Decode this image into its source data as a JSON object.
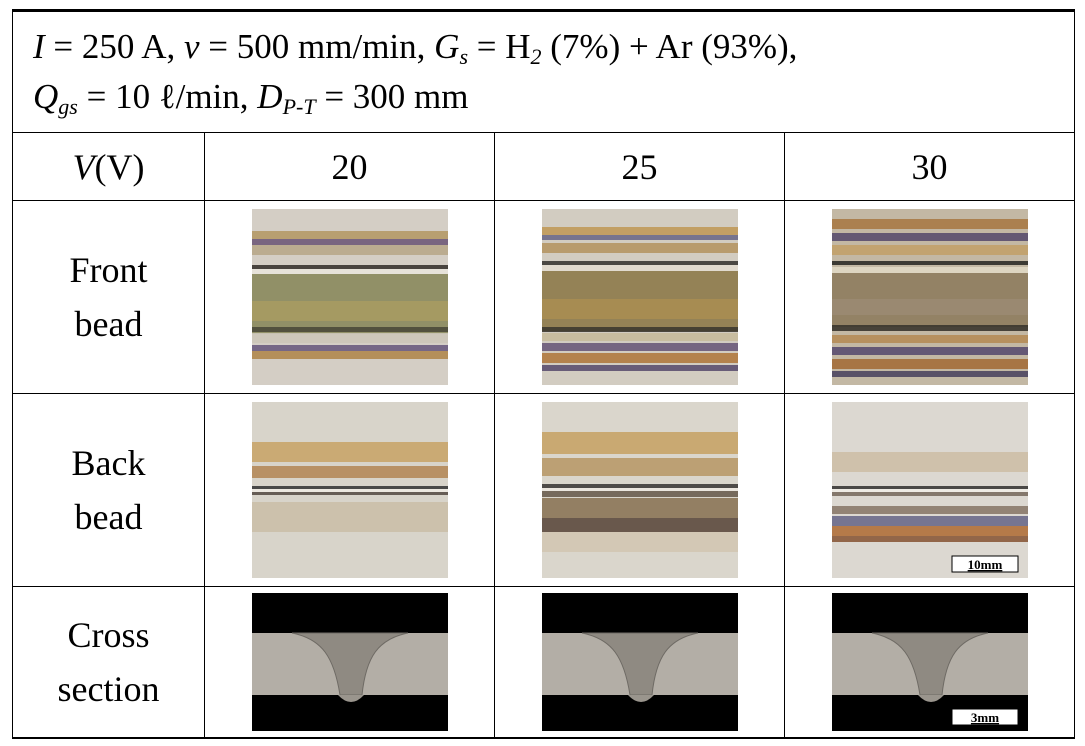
{
  "header": {
    "line1": [
      "I",
      " = 250 A, ",
      "v",
      " = 500 mm/min, ",
      "G",
      "s",
      " = H",
      "2",
      " (7%) + Ar (93%),"
    ],
    "line2": [
      "Q",
      "gs",
      " = 10 ℓ/min, ",
      "D",
      "P-T",
      " = 300 mm"
    ]
  },
  "columns": {
    "label": [
      "V",
      " (V)"
    ],
    "values": [
      20,
      25,
      30
    ]
  },
  "rows": [
    {
      "label": "Front bead"
    },
    {
      "label": "Back bead",
      "scale_label": "10mm"
    },
    {
      "label": "Cross section",
      "scale_label": "3mm"
    }
  ]
}
